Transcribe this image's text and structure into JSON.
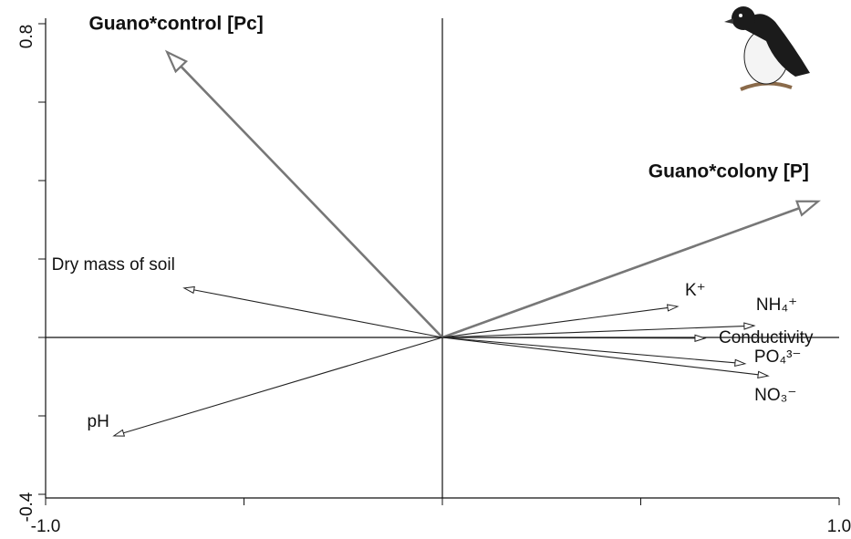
{
  "chart_data": {
    "type": "biplot",
    "xlim": [
      -1.0,
      1.0
    ],
    "ylim": [
      -0.4,
      0.8
    ],
    "xticks": [
      {
        "value": -1.0,
        "label": "-1.0"
      },
      {
        "value": -0.5,
        "label": null
      },
      {
        "value": 0,
        "label": null
      },
      {
        "value": 0.5,
        "label": null
      },
      {
        "value": 1.0,
        "label": "1.0"
      }
    ],
    "yticks": [
      {
        "value": -0.4,
        "label": "-0.4"
      },
      {
        "value": -0.2,
        "label": null
      },
      {
        "value": 0,
        "label": null
      },
      {
        "value": 0.2,
        "label": null
      },
      {
        "value": 0.4,
        "label": null
      },
      {
        "value": 0.6,
        "label": null
      },
      {
        "value": 0.8,
        "label": "0.8"
      }
    ],
    "arrows": [
      {
        "name": "Guano*control [Pc]",
        "x": -0.694,
        "y": 0.728,
        "bold": true,
        "color": "#777777"
      },
      {
        "name": "Guano*colony [P]",
        "x": 0.947,
        "y": 0.347,
        "bold": true,
        "color": "#777777"
      },
      {
        "name": "Dry mass of soil",
        "x": -0.651,
        "y": 0.126,
        "bold": false,
        "color": "#222222"
      },
      {
        "name": "pH",
        "x": -0.828,
        "y": -0.251,
        "bold": false,
        "color": "#222222"
      },
      {
        "name": "K⁺",
        "x": 0.593,
        "y": 0.079,
        "bold": false,
        "color": "#222222"
      },
      {
        "name": "NH₄⁺",
        "x": 0.786,
        "y": 0.03,
        "bold": false,
        "color": "#222222"
      },
      {
        "name": "Conductivity",
        "x": 0.662,
        "y": -0.002,
        "bold": false,
        "color": "#222222"
      },
      {
        "name": "PO₄³⁻",
        "x": 0.763,
        "y": -0.067,
        "bold": false,
        "color": "#222222"
      },
      {
        "name": "NO₃⁻",
        "x": 0.821,
        "y": -0.098,
        "bold": false,
        "color": "#222222"
      }
    ]
  }
}
